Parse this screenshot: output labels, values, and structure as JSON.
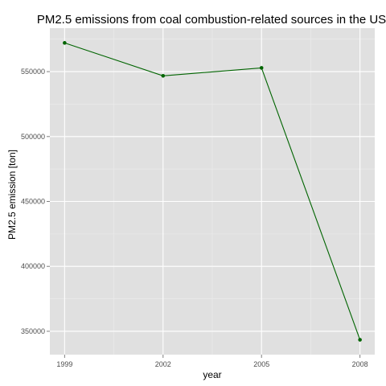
{
  "chart_data": {
    "type": "line",
    "title": "PM2.5 emissions from coal combustion-related sources in the US",
    "xlabel": "year",
    "ylabel": "PM2.5 emission [ton]",
    "x": [
      1999,
      2002,
      2005,
      2008
    ],
    "series": [
      {
        "values": [
          572126,
          546789,
          552881,
          343432
        ]
      }
    ],
    "x_ticks": [
      "1999",
      "2002",
      "2005",
      "2008"
    ],
    "y_ticks": [
      "350000",
      "400000",
      "450000",
      "500000",
      "550000"
    ],
    "xlim": [
      1998.55,
      2008.45
    ],
    "ylim": [
      332000,
      583500
    ],
    "grid": true,
    "colors": {
      "panel": "#e0e0e0",
      "grid_major": "#ffffff",
      "grid_minor": "#ececec",
      "line": "#006400",
      "point": "#006400"
    }
  }
}
